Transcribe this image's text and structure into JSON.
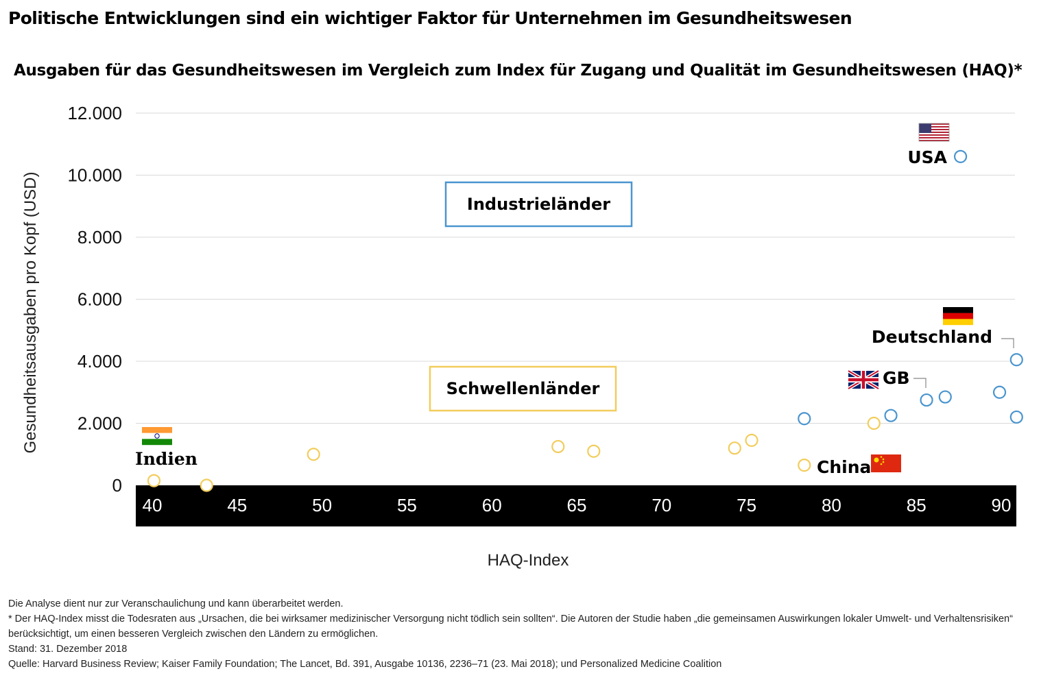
{
  "headline": "Politische Entwicklungen sind ein wichtiger Faktor für Unternehmen im Gesundheitswesen",
  "colors": {
    "industrial": "#4a95cf",
    "emerging": "#f2cd5c",
    "axis_band": "#000000",
    "grid": "#d8d8d8"
  },
  "chart_data": {
    "type": "scatter",
    "title": "Ausgaben für das Gesundheitswesen im Vergleich zum Index für Zugang und Qualität im Gesundheitswesen (HAQ)*",
    "xlabel": "HAQ-Index",
    "ylabel": "Gesundheitsausgaben pro Kopf (USD)",
    "xlim": [
      39,
      91
    ],
    "ylim": [
      0,
      12000
    ],
    "x_ticks": [
      40,
      45,
      50,
      55,
      60,
      65,
      70,
      75,
      80,
      85,
      90
    ],
    "x_tick_labels": [
      "40",
      "45",
      "50",
      "55",
      "60",
      "65",
      "70",
      "75",
      "80",
      "85",
      "90"
    ],
    "y_ticks": [
      0,
      2000,
      4000,
      6000,
      8000,
      10000,
      12000
    ],
    "y_tick_labels": [
      "0",
      "2.000",
      "4.000",
      "6.000",
      "8.000",
      "10.000",
      "12.000"
    ],
    "grid": true,
    "series": [
      {
        "name": "Industrieländer",
        "color": "#4a95cf",
        "points": [
          {
            "x": 78.4,
            "y": 2150
          },
          {
            "x": 83.5,
            "y": 2250
          },
          {
            "x": 85.6,
            "y": 2750
          },
          {
            "x": 86.7,
            "y": 2850
          },
          {
            "x": 87.6,
            "y": 10600,
            "label": "USA",
            "flag": "us-flag-icon"
          },
          {
            "x": 89.9,
            "y": 3000
          },
          {
            "x": 90.9,
            "y": 4050,
            "label": "Deutschland",
            "flag": "germany-flag-icon"
          },
          {
            "x": 90.9,
            "y": 2200
          }
        ]
      },
      {
        "name": "Schwellenländer",
        "color": "#f2cd5c",
        "points": [
          {
            "x": 40.1,
            "y": 150,
            "label": "Indien",
            "flag": "india-flag-icon"
          },
          {
            "x": 43.2,
            "y": 0
          },
          {
            "x": 49.5,
            "y": 1000
          },
          {
            "x": 63.9,
            "y": 1250
          },
          {
            "x": 66.0,
            "y": 1100
          },
          {
            "x": 74.3,
            "y": 1200
          },
          {
            "x": 75.3,
            "y": 1450
          },
          {
            "x": 78.4,
            "y": 650,
            "label": "China",
            "flag": "china-flag-icon"
          },
          {
            "x": 82.5,
            "y": 2000
          }
        ]
      }
    ],
    "annotations": [
      {
        "text": "GB",
        "flag": "uk-flag-icon"
      }
    ],
    "legend": "in-plot boxes"
  },
  "footer": {
    "disclaimer": "Die Analyse dient nur zur Veranschaulichung und kann überarbeitet werden.",
    "note": "* Der HAQ-Index misst die Todesraten aus „Ursachen, die bei wirksamer medizinischer Versorgung nicht tödlich sein sollten“. Die Autoren der Studie haben „die gemeinsamen Auswirkungen lokaler Umwelt- und Verhaltensrisiken“ berücksichtigt, um einen besseren Vergleich zwischen den Ländern zu ermöglichen.",
    "date": "Stand: 31. Dezember 2018",
    "source": "Quelle: Harvard Business Review; Kaiser Family Foundation; The Lancet, Bd. 391, Ausgabe 10136, 2236–71 (23. Mai 2018); und Personalized Medicine Coalition"
  }
}
